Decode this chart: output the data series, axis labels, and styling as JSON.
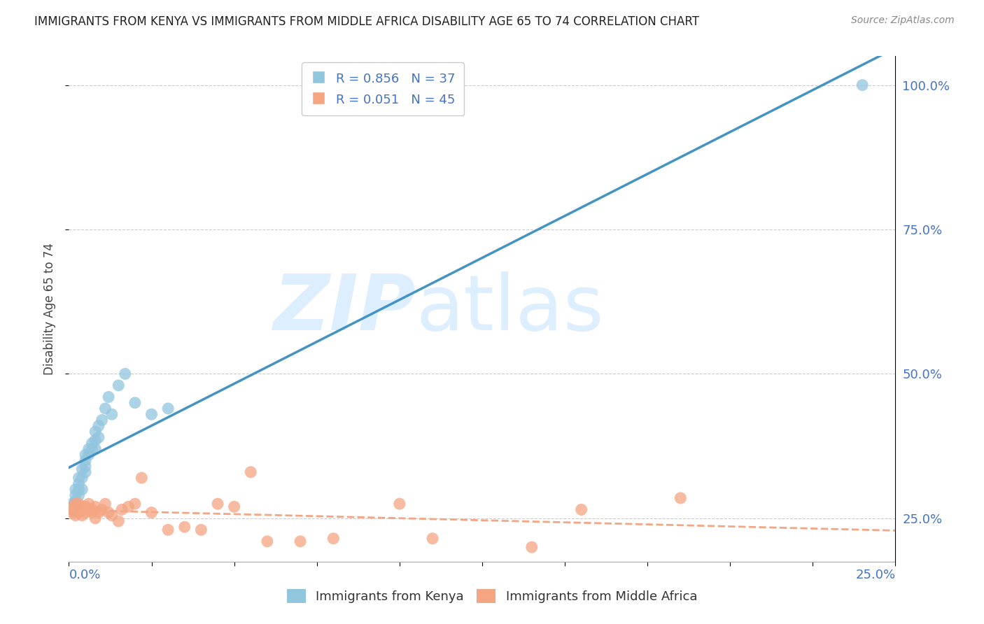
{
  "title": "IMMIGRANTS FROM KENYA VS IMMIGRANTS FROM MIDDLE AFRICA DISABILITY AGE 65 TO 74 CORRELATION CHART",
  "source": "Source: ZipAtlas.com",
  "ylabel": "Disability Age 65 to 74",
  "right_yticklabels": [
    "25.0%",
    "50.0%",
    "75.0%",
    "100.0%"
  ],
  "right_ytick_vals": [
    0.25,
    0.5,
    0.75,
    1.0
  ],
  "kenya_color": "#92c5de",
  "kenya_line_color": "#4393c3",
  "middle_africa_color": "#f4a582",
  "middle_africa_line_color": "#f4a582",
  "legend_line1": "R = 0.856   N = 37",
  "legend_line2": "R = 0.051   N = 45",
  "kenya_x": [
    0.001,
    0.001,
    0.001,
    0.002,
    0.002,
    0.002,
    0.002,
    0.003,
    0.003,
    0.003,
    0.003,
    0.004,
    0.004,
    0.004,
    0.005,
    0.005,
    0.005,
    0.005,
    0.006,
    0.006,
    0.007,
    0.007,
    0.008,
    0.008,
    0.008,
    0.009,
    0.009,
    0.01,
    0.011,
    0.012,
    0.013,
    0.015,
    0.017,
    0.02,
    0.025,
    0.03,
    0.24
  ],
  "kenya_y": [
    0.265,
    0.27,
    0.275,
    0.275,
    0.28,
    0.29,
    0.3,
    0.29,
    0.3,
    0.31,
    0.32,
    0.3,
    0.32,
    0.335,
    0.33,
    0.34,
    0.35,
    0.36,
    0.36,
    0.37,
    0.37,
    0.38,
    0.37,
    0.385,
    0.4,
    0.39,
    0.41,
    0.42,
    0.44,
    0.46,
    0.43,
    0.48,
    0.5,
    0.45,
    0.43,
    0.44,
    1.0
  ],
  "middle_africa_x": [
    0.001,
    0.001,
    0.001,
    0.002,
    0.002,
    0.002,
    0.003,
    0.003,
    0.003,
    0.004,
    0.004,
    0.004,
    0.005,
    0.005,
    0.006,
    0.006,
    0.007,
    0.007,
    0.008,
    0.008,
    0.009,
    0.01,
    0.011,
    0.012,
    0.013,
    0.015,
    0.016,
    0.018,
    0.02,
    0.022,
    0.025,
    0.03,
    0.035,
    0.04,
    0.045,
    0.05,
    0.055,
    0.06,
    0.07,
    0.08,
    0.1,
    0.11,
    0.14,
    0.155,
    0.185
  ],
  "middle_africa_y": [
    0.265,
    0.27,
    0.26,
    0.275,
    0.265,
    0.255,
    0.27,
    0.26,
    0.275,
    0.265,
    0.27,
    0.255,
    0.27,
    0.26,
    0.265,
    0.275,
    0.26,
    0.265,
    0.25,
    0.27,
    0.26,
    0.265,
    0.275,
    0.26,
    0.255,
    0.245,
    0.265,
    0.27,
    0.275,
    0.32,
    0.26,
    0.23,
    0.235,
    0.23,
    0.275,
    0.27,
    0.33,
    0.21,
    0.21,
    0.215,
    0.275,
    0.215,
    0.2,
    0.265,
    0.285
  ],
  "xlim": [
    0.0,
    0.25
  ],
  "ylim": [
    0.175,
    1.05
  ],
  "background_color": "#ffffff",
  "grid_color": "#cccccc",
  "title_color": "#222222",
  "axis_color": "#4472c4",
  "watermark_zip": "ZIP",
  "watermark_atlas": "atlas",
  "watermark_color": "#ddeeff"
}
